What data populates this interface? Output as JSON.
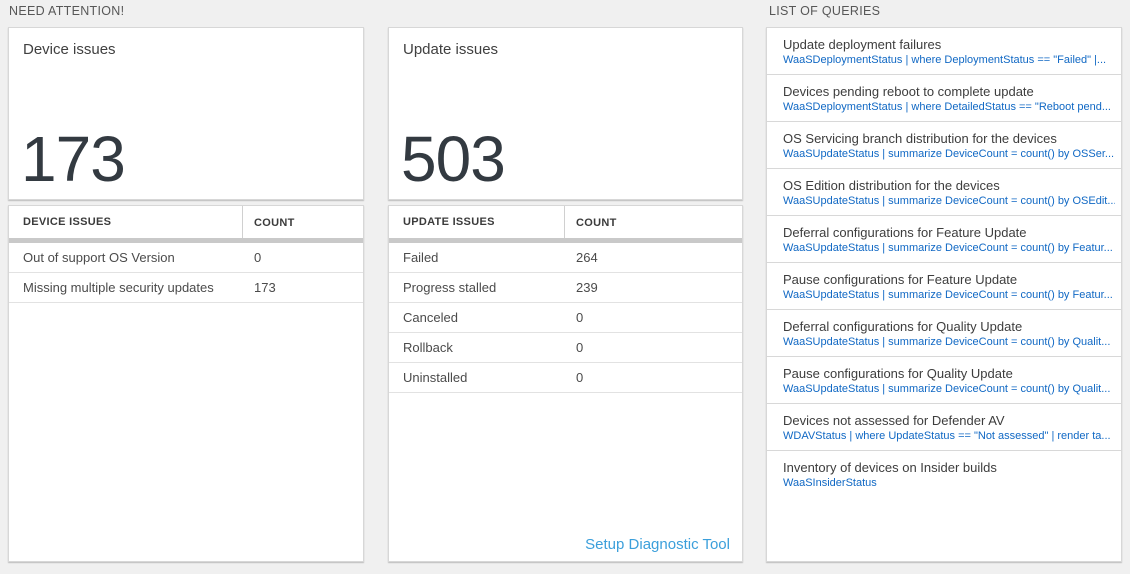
{
  "colors": {
    "page_bg": "#f0f0f0",
    "query_link_blue": "#1068c4",
    "setup_link_blue": "#3b9fdb",
    "big_number": "#333a41"
  },
  "sections": {
    "need_attention_title": "NEED ATTENTION!",
    "queries_title": "LIST OF QUERIES"
  },
  "device_tile": {
    "title": "Device issues",
    "count": "173"
  },
  "device_table": {
    "col_issue": "DEVICE ISSUES",
    "col_count": "COUNT",
    "rows": [
      {
        "label": "Out of support OS Version",
        "count": "0"
      },
      {
        "label": "Missing multiple security updates",
        "count": "173"
      }
    ]
  },
  "update_tile": {
    "title": "Update issues",
    "count": "503"
  },
  "update_table": {
    "col_issue": "UPDATE ISSUES",
    "col_count": "COUNT",
    "rows": [
      {
        "label": "Failed",
        "count": "264"
      },
      {
        "label": "Progress stalled",
        "count": "239"
      },
      {
        "label": "Canceled",
        "count": "0"
      },
      {
        "label": "Rollback",
        "count": "0"
      },
      {
        "label": "Uninstalled",
        "count": "0"
      }
    ],
    "footer_link": "Setup Diagnostic Tool"
  },
  "queries_list": [
    {
      "title": "Update deployment failures",
      "query": "WaaSDeploymentStatus | where DeploymentStatus == \"Failed\" |..."
    },
    {
      "title": "Devices pending reboot to complete update",
      "query": "WaaSDeploymentStatus | where DetailedStatus == \"Reboot pend..."
    },
    {
      "title": "OS Servicing branch distribution for the devices",
      "query": "WaaSUpdateStatus | summarize DeviceCount = count() by OSSer..."
    },
    {
      "title": "OS Edition distribution for the devices",
      "query": "WaaSUpdateStatus | summarize DeviceCount = count() by OSEdit..."
    },
    {
      "title": "Deferral configurations for Feature Update",
      "query": "WaaSUpdateStatus | summarize DeviceCount = count() by Featur..."
    },
    {
      "title": "Pause configurations for Feature Update",
      "query": "WaaSUpdateStatus | summarize DeviceCount = count() by Featur..."
    },
    {
      "title": "Deferral configurations for Quality Update",
      "query": "WaaSUpdateStatus | summarize DeviceCount = count() by Qualit..."
    },
    {
      "title": "Pause configurations for Quality Update",
      "query": "WaaSUpdateStatus | summarize DeviceCount = count() by Qualit..."
    },
    {
      "title": "Devices not assessed for Defender AV",
      "query": "WDAVStatus | where UpdateStatus == \"Not assessed\" | render ta..."
    },
    {
      "title": "Inventory of devices on Insider builds",
      "query": "WaaSInsiderStatus"
    }
  ]
}
